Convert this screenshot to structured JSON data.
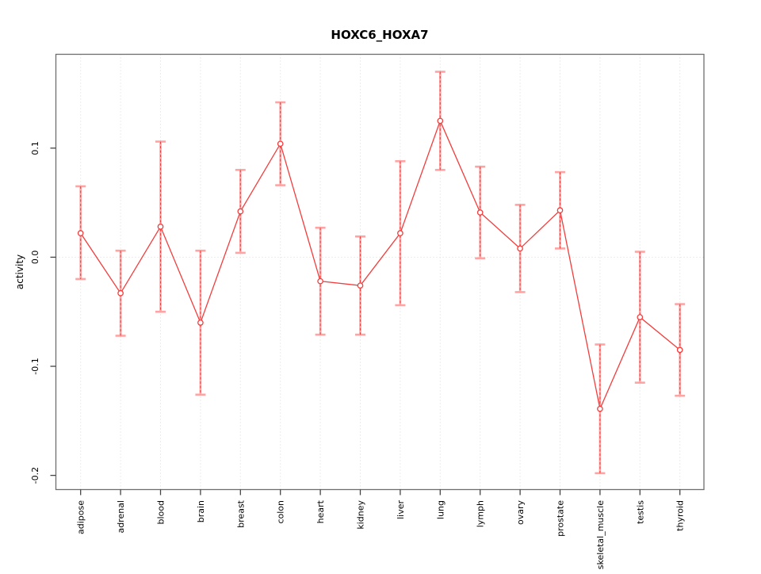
{
  "page": {
    "title": "HOXC6_HOXA7"
  },
  "chart_data": {
    "type": "line",
    "title": "HOXC6_HOXA7",
    "xlabel": "",
    "ylabel": "activity",
    "legend": "none",
    "grid": "light dotted vertical line at each category; light dotted horizontal line at y=0",
    "categories": [
      "adipose",
      "adrenal",
      "blood",
      "brain",
      "breast",
      "colon",
      "heart",
      "kidney",
      "liver",
      "lung",
      "lymph",
      "ovary",
      "prostate",
      "skeletal_muscle",
      "testis",
      "thyroid"
    ],
    "series": [
      {
        "name": "activity",
        "marker": "open-circle",
        "values": [
          0.022,
          -0.033,
          0.028,
          -0.06,
          0.042,
          0.104,
          -0.022,
          -0.026,
          0.022,
          0.125,
          0.041,
          0.008,
          0.043,
          -0.139,
          -0.055,
          -0.085
        ],
        "ci_low": [
          -0.02,
          -0.072,
          -0.05,
          -0.126,
          0.004,
          0.066,
          -0.071,
          -0.071,
          -0.044,
          0.08,
          -0.001,
          -0.032,
          0.008,
          -0.198,
          -0.115,
          -0.127
        ],
        "ci_high": [
          0.065,
          0.006,
          0.106,
          0.006,
          0.08,
          0.142,
          0.027,
          0.019,
          0.088,
          0.17,
          0.083,
          0.048,
          0.078,
          -0.08,
          0.005,
          -0.043
        ]
      }
    ],
    "yticks": [
      0.1,
      0.0,
      -0.1,
      -0.2
    ],
    "ytick_labels": [
      "0.1",
      "0.0",
      "-0.1",
      "-0.2"
    ],
    "ylim": [
      -0.213,
      0.186
    ],
    "colors": {
      "series": "#f23d3d",
      "error_bar": "#ffa3a3",
      "grid": "#d9d9d9",
      "axis_box": "#6e6e6e",
      "tick": "#444444",
      "text": "#000000",
      "background": "#ffffff"
    }
  }
}
